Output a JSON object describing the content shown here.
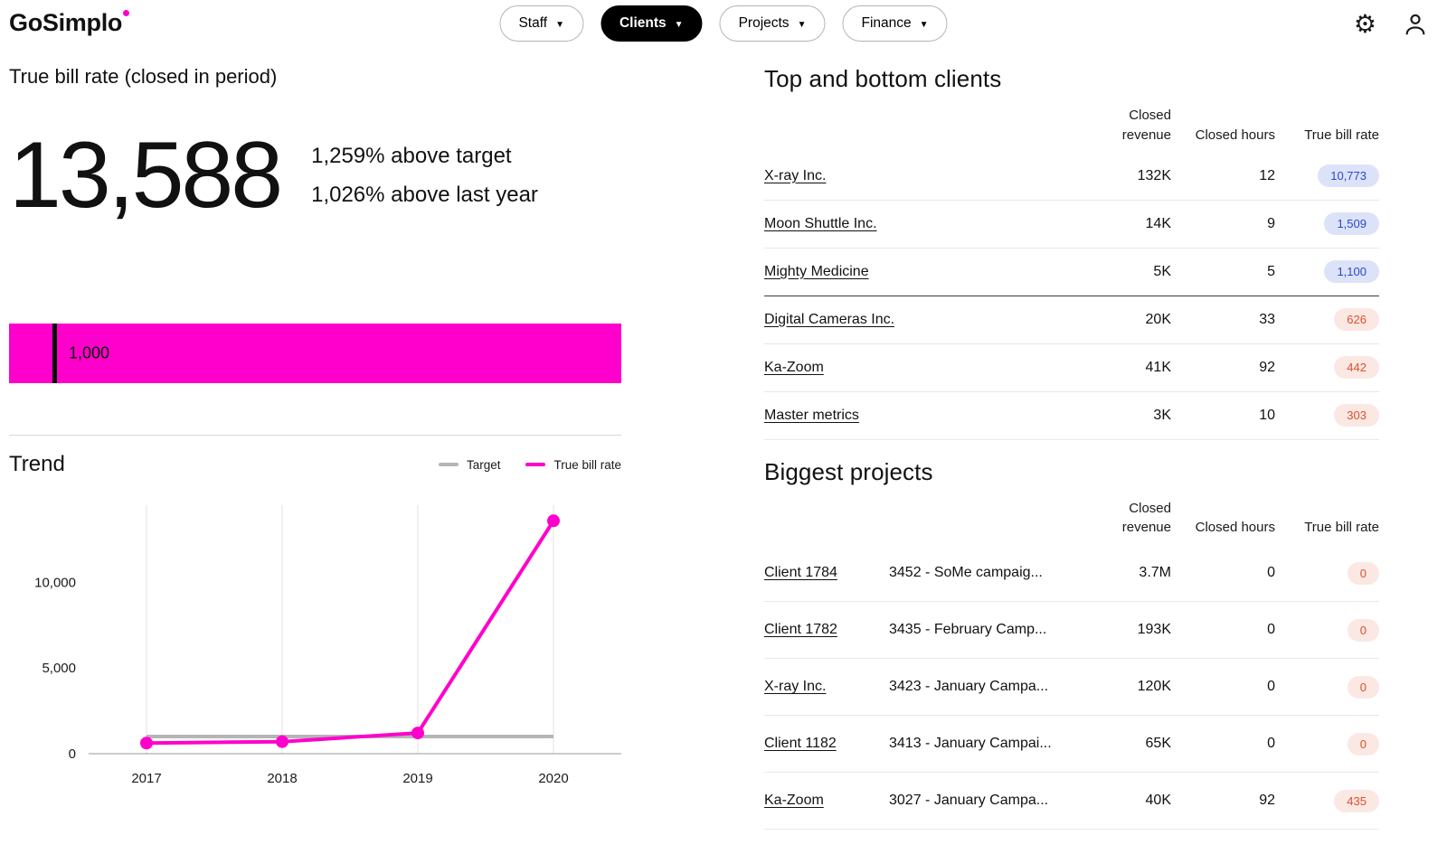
{
  "header": {
    "logo": "GoSimplo",
    "settings_glyph": "⚙",
    "nav": [
      {
        "label": "Staff",
        "active": false
      },
      {
        "label": "Clients",
        "active": true
      },
      {
        "label": "Projects",
        "active": false
      },
      {
        "label": "Finance",
        "active": false
      }
    ]
  },
  "kpi": {
    "title": "True bill rate (closed in period)",
    "value": "13,588",
    "comparison_target": "1,259% above target",
    "comparison_last_year": "1,026% above last year",
    "bar_color": "#ff00cc",
    "target_marker_label": "1,000"
  },
  "trend": {
    "title": "Trend",
    "legend": [
      {
        "label": "Target",
        "color": "#b5b5b5"
      },
      {
        "label": "True bill rate",
        "color": "#ff00cc"
      }
    ]
  },
  "chart_data": {
    "type": "line",
    "x": [
      "2017",
      "2018",
      "2019",
      "2020"
    ],
    "series": [
      {
        "name": "Target",
        "values": [
          1000,
          1000,
          1000,
          1000
        ],
        "color": "#b5b5b5",
        "markers": false
      },
      {
        "name": "True bill rate",
        "values": [
          620,
          700,
          1207,
          13588
        ],
        "color": "#ff00cc",
        "markers": true
      }
    ],
    "ylim": [
      0,
      14500
    ],
    "yticks": [
      0,
      5000,
      10000
    ],
    "ytick_labels": [
      "0",
      "5,000",
      "10,000"
    ],
    "xlabel": "",
    "ylabel": "",
    "legend_position": "top-right",
    "grid": "vertical"
  },
  "clients": {
    "title": "Top and bottom clients",
    "columns": [
      "Closed revenue",
      "Closed hours",
      "True bill rate"
    ],
    "rows": [
      {
        "name": "X-ray Inc.",
        "revenue": "132K",
        "hours": "12",
        "rate": "10,773",
        "tone": "good",
        "divider": false
      },
      {
        "name": "Moon Shuttle Inc.",
        "revenue": "14K",
        "hours": "9",
        "rate": "1,509",
        "tone": "good",
        "divider": false
      },
      {
        "name": "Mighty Medicine",
        "revenue": "5K",
        "hours": "5",
        "rate": "1,100",
        "tone": "good",
        "divider": true
      },
      {
        "name": "Digital Cameras Inc.",
        "revenue": "20K",
        "hours": "33",
        "rate": "626",
        "tone": "bad",
        "divider": false
      },
      {
        "name": "Ka-Zoom",
        "revenue": "41K",
        "hours": "92",
        "rate": "442",
        "tone": "bad",
        "divider": false
      },
      {
        "name": "Master metrics",
        "revenue": "3K",
        "hours": "10",
        "rate": "303",
        "tone": "bad",
        "divider": false
      }
    ]
  },
  "projects": {
    "title": "Biggest projects",
    "columns": [
      "Closed revenue",
      "Closed hours",
      "True bill rate"
    ],
    "rows": [
      {
        "client": "Client 1784",
        "project": "3452 - SoMe campaig...",
        "revenue": "3.7M",
        "hours": "0",
        "rate": "0",
        "tone": "bad"
      },
      {
        "client": "Client 1782",
        "project": "3435 - February Camp...",
        "revenue": "193K",
        "hours": "0",
        "rate": "0",
        "tone": "bad"
      },
      {
        "client": "X-ray Inc.",
        "project": "3423 - January Campa...",
        "revenue": "120K",
        "hours": "0",
        "rate": "0",
        "tone": "bad"
      },
      {
        "client": "Client 1182",
        "project": "3413 - January Campai...",
        "revenue": "65K",
        "hours": "0",
        "rate": "0",
        "tone": "bad"
      },
      {
        "client": "Ka-Zoom",
        "project": "3027 - January Campa...",
        "revenue": "40K",
        "hours": "92",
        "rate": "435",
        "tone": "bad"
      }
    ]
  }
}
